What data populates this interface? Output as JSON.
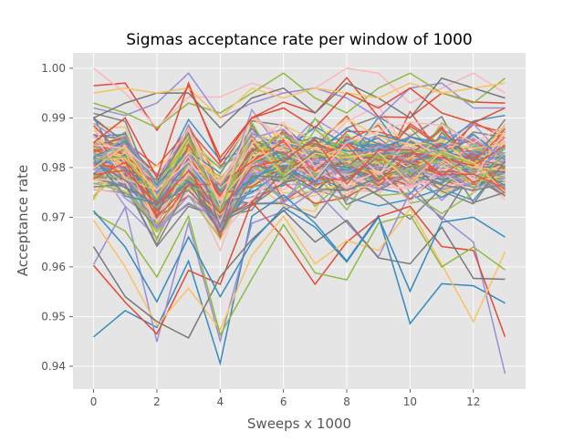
{
  "chart_data": {
    "type": "line",
    "title": "Sigmas acceptance rate per window of 1000",
    "xlabel": "Sweeps x 1000",
    "ylabel": "Acceptance rate",
    "xlim": [
      -0.65,
      13.65
    ],
    "ylim": [
      0.9354,
      1.0031
    ],
    "x_ticks": [
      0,
      2,
      4,
      6,
      8,
      10,
      12
    ],
    "y_ticks": [
      0.94,
      0.95,
      0.96,
      0.97,
      0.98,
      0.99,
      1.0
    ],
    "y_tick_labels": [
      "0.94",
      "0.95",
      "0.96",
      "0.97",
      "0.98",
      "0.99",
      "1.00"
    ],
    "grid": true,
    "background": "#E5E5E5",
    "grid_color": "#FFFFFF",
    "palette": [
      "#E24A33",
      "#348ABD",
      "#988ED5",
      "#777777",
      "#FBC15E",
      "#8EBA42",
      "#FFB5B8"
    ],
    "x": [
      0,
      1,
      2,
      3,
      4,
      5,
      6,
      7,
      8,
      9,
      10,
      11,
      12,
      13
    ],
    "series": [
      {
        "color": "#348ABD",
        "values": [
          0.9459,
          0.9512,
          0.9478,
          0.9612,
          0.9406,
          0.9702,
          0.9745,
          0.9688,
          0.9612,
          0.9703,
          0.9486,
          0.9566,
          0.9562,
          0.9527
        ]
      },
      {
        "color": "#988ED5",
        "values": [
          0.9605,
          0.972,
          0.9449,
          0.9689,
          0.9451,
          0.9688,
          0.9712,
          0.9754,
          0.9689,
          0.962,
          0.975,
          0.97,
          0.965,
          0.9385
        ]
      },
      {
        "color": "#E24A33",
        "values": [
          0.9603,
          0.9529,
          0.9465,
          0.9593,
          0.9565,
          0.9731,
          0.9658,
          0.9565,
          0.965,
          0.9701,
          0.9722,
          0.9641,
          0.9633,
          0.9459
        ]
      },
      {
        "color": "#FBC15E",
        "values": [
          0.9694,
          0.96,
          0.9482,
          0.9557,
          0.9474,
          0.9623,
          0.9702,
          0.9606,
          0.9653,
          0.9633,
          0.9717,
          0.9605,
          0.949,
          0.963
        ]
      },
      {
        "color": "#777777",
        "values": [
          0.9641,
          0.954,
          0.949,
          0.9457,
          0.958,
          0.9655,
          0.9714,
          0.965,
          0.9694,
          0.9618,
          0.9606,
          0.968,
          0.9577,
          0.9575
        ]
      },
      {
        "color": "#8EBA42",
        "values": [
          0.9708,
          0.9672,
          0.958,
          0.9702,
          0.9463,
          0.9576,
          0.9685,
          0.9588,
          0.9574,
          0.9688,
          0.9705,
          0.96,
          0.964,
          0.9594
        ]
      },
      {
        "color": "#348ABD",
        "values": [
          0.9713,
          0.964,
          0.953,
          0.966,
          0.954,
          0.965,
          0.972,
          0.968,
          0.961,
          0.97,
          0.9551,
          0.969,
          0.97,
          0.966
        ]
      },
      {
        "color": "#E24A33",
        "values": [
          0.9965,
          0.997,
          0.9875,
          0.9963,
          0.982,
          0.99,
          0.9932,
          0.991,
          0.9981,
          0.9902,
          0.9901,
          0.995,
          0.9932,
          0.993
        ]
      },
      {
        "color": "#FFB5B8",
        "values": [
          1.0,
          0.995,
          0.988,
          0.9942,
          0.9942,
          0.997,
          0.995,
          0.996,
          1.0,
          0.999,
          0.993,
          0.996,
          0.999,
          0.995
        ]
      },
      {
        "color": "#988ED5",
        "values": [
          0.992,
          0.9905,
          0.993,
          0.999,
          0.99,
          0.993,
          0.995,
          0.996,
          0.994,
          0.99,
          0.996,
          0.997,
          0.992,
          0.992
        ]
      },
      {
        "color": "#8EBA42",
        "values": [
          0.993,
          0.991,
          0.988,
          0.993,
          0.991,
          0.995,
          0.999,
          0.994,
          0.991,
          0.996,
          0.999,
          0.995,
          0.993,
          0.998
        ]
      },
      {
        "color": "#777777",
        "values": [
          0.99,
          0.993,
          0.995,
          0.995,
          0.988,
          0.994,
          0.996,
          0.991,
          0.997,
          0.994,
          0.99,
          0.998,
          0.996,
          0.994
        ]
      },
      {
        "color": "#FBC15E",
        "values": [
          0.995,
          0.996,
          0.995,
          0.996,
          0.99,
          0.996,
          0.994,
          0.996,
          0.995,
          0.994,
          0.997,
          0.995,
          0.996,
          0.997
        ]
      },
      {
        "color": "#E24A33",
        "values": [
          0.985,
          0.99,
          0.978,
          0.997,
          0.981,
          0.99,
          0.992,
          0.988,
          0.995,
          0.992,
          0.996,
          0.991,
          0.989,
          0.992
        ]
      }
    ]
  }
}
